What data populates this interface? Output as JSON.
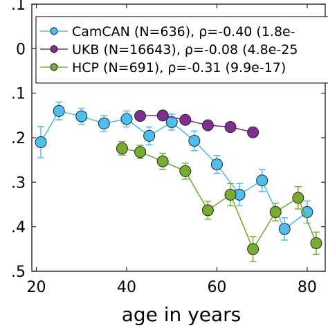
{
  "chart_data": {
    "type": "line",
    "title": "",
    "xlabel": "age in years",
    "ylabel": "",
    "xlim": [
      19,
      84
    ],
    "ylim": [
      -0.5,
      0.1
    ],
    "xticks": [
      20,
      40,
      60,
      80
    ],
    "xtick_labels": [
      "20",
      "40",
      "60",
      "80"
    ],
    "yticks": [
      0.1,
      0,
      -0.1,
      -0.2,
      -0.3,
      -0.4,
      -0.5
    ],
    "ytick_labels": [
      ".1",
      "0",
      ".1",
      ".2",
      ".3",
      ".4",
      ".5"
    ],
    "grid": false,
    "legend_position": "top",
    "series": [
      {
        "name": "CamCAN (N=636), ρ=-0.40 (1.8e-",
        "color": "#4dbeee",
        "x": [
          21,
          25,
          30,
          35,
          40,
          45,
          50,
          55,
          60,
          65,
          70,
          75,
          80
        ],
        "y": [
          -0.21,
          -0.14,
          -0.152,
          -0.168,
          -0.158,
          -0.196,
          -0.165,
          -0.207,
          -0.26,
          -0.328,
          -0.296,
          -0.405,
          -0.367
        ],
        "err": [
          0.035,
          0.02,
          0.018,
          0.018,
          0.018,
          0.02,
          0.018,
          0.022,
          0.02,
          0.025,
          0.025,
          0.025,
          0.025
        ]
      },
      {
        "name": "UKB (N=16643), ρ=-0.08 (4.8e-25",
        "color": "#7e2f8e",
        "x": [
          43,
          48,
          53,
          58,
          63,
          68
        ],
        "y": [
          -0.151,
          -0.15,
          -0.16,
          -0.172,
          -0.176,
          -0.188
        ],
        "err": [
          0.006,
          0.006,
          0.005,
          0.005,
          0.005,
          0.006
        ]
      },
      {
        "name": "HCP (N=691), ρ=-0.31 (9.9e-17)",
        "color": "#77ac30",
        "x": [
          39,
          43,
          48,
          53,
          58,
          63,
          68,
          73,
          78,
          82
        ],
        "y": [
          -0.224,
          -0.232,
          -0.253,
          -0.275,
          -0.363,
          -0.328,
          -0.45,
          -0.367,
          -0.335,
          -0.437
        ],
        "err": [
          0.015,
          0.015,
          0.018,
          0.018,
          0.02,
          0.025,
          0.028,
          0.02,
          0.025,
          0.025
        ]
      }
    ]
  }
}
